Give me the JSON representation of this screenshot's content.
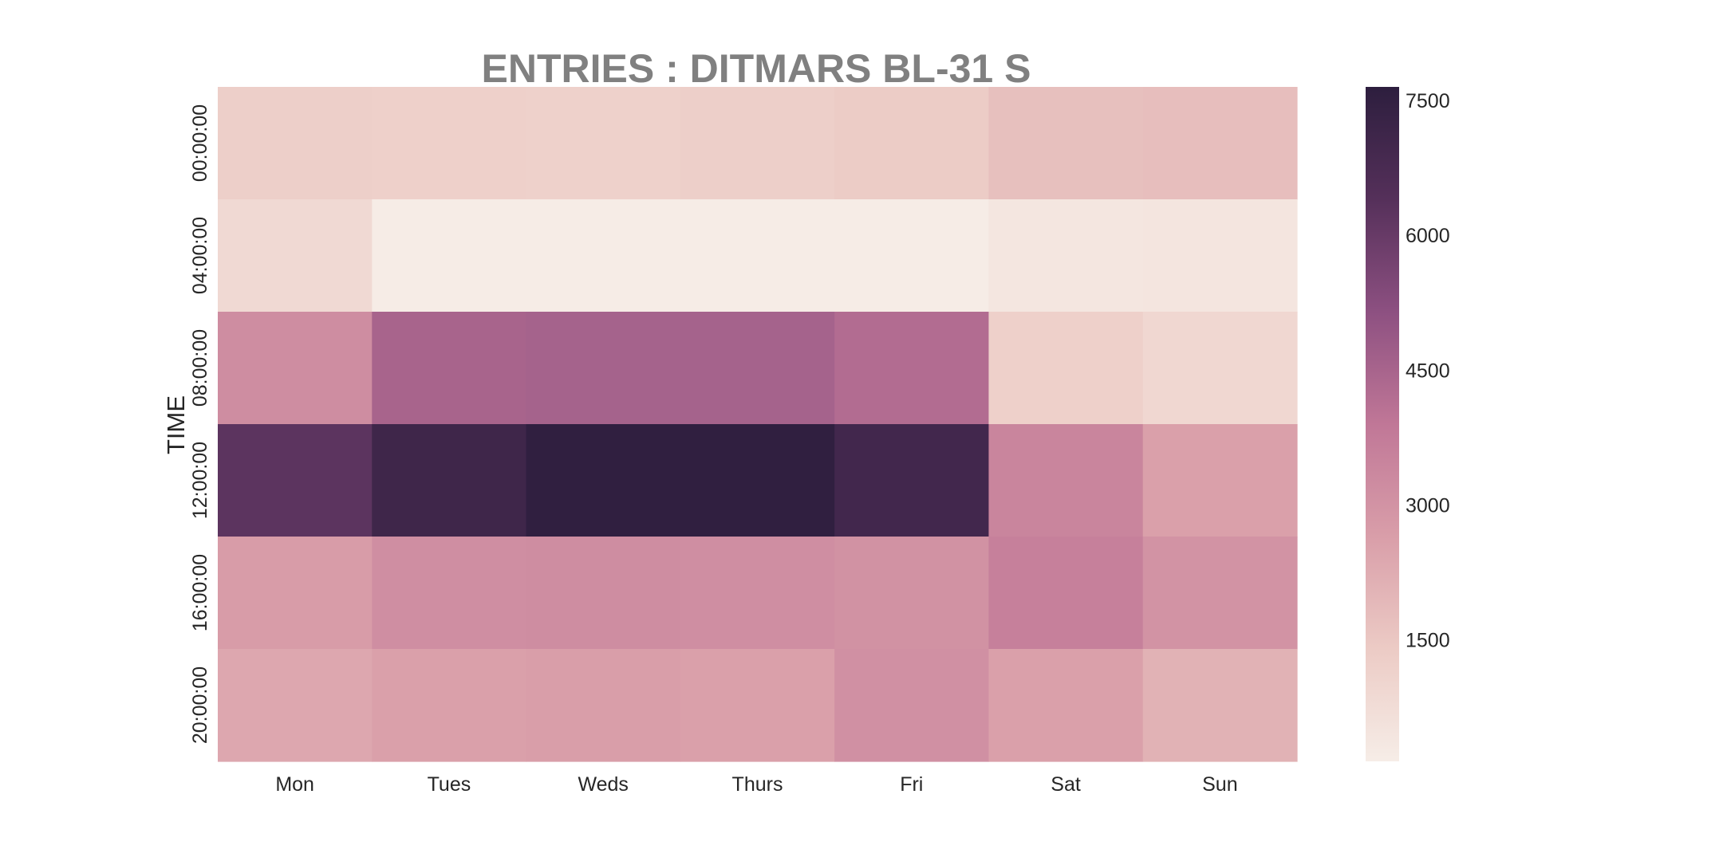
{
  "chart_data": {
    "type": "heatmap",
    "title": "ENTRIES : DITMARS BL-31 S",
    "xlabel": "",
    "ylabel": "TIME",
    "x_categories": [
      "Mon",
      "Tues",
      "Weds",
      "Thurs",
      "Fri",
      "Sat",
      "Sun"
    ],
    "y_categories": [
      "00:00:00",
      "04:00:00",
      "08:00:00",
      "12:00:00",
      "16:00:00",
      "20:00:00"
    ],
    "values": [
      [
        1250,
        1200,
        1180,
        1250,
        1350,
        1700,
        1750
      ],
      [
        900,
        200,
        200,
        200,
        200,
        400,
        450
      ],
      [
        3200,
        4500,
        4550,
        4550,
        4250,
        1200,
        950
      ],
      [
        6250,
        7100,
        7550,
        7550,
        7000,
        3450,
        2600
      ],
      [
        2700,
        3150,
        3200,
        3150,
        3050,
        3600,
        3000
      ],
      [
        2400,
        2600,
        2650,
        2600,
        3100,
        2600,
        2100
      ]
    ],
    "colorbar": {
      "ticks": [
        1500,
        3000,
        4500,
        6000,
        7500
      ],
      "range": [
        150,
        7650
      ],
      "colors": [
        "#f6ede7",
        "#eccbc5",
        "#d99ea9",
        "#c07797",
        "#8d5081",
        "#55305a",
        "#2d1e3e"
      ]
    },
    "grid": false
  }
}
